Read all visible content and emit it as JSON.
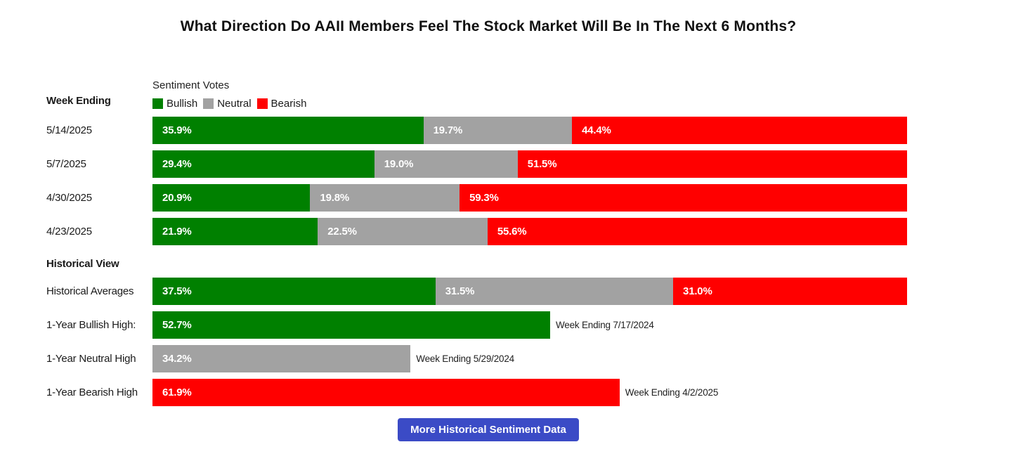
{
  "title": "What Direction Do AAII Members Feel The Stock Market Will Be In The Next 6 Months?",
  "colors": {
    "bullish": "#008000",
    "neutral": "#a2a2a2",
    "bearish": "#ff0000",
    "button_bg": "#3b4bc6",
    "button_text": "#ffffff"
  },
  "left_column": {
    "week_ending_label": "Week Ending",
    "historical_view_label": "Historical View"
  },
  "legend": {
    "title": "Sentiment Votes",
    "items": [
      {
        "label": "Bullish"
      },
      {
        "label": "Neutral"
      },
      {
        "label": "Bearish"
      }
    ]
  },
  "chart_data": {
    "type": "bar",
    "subtype": "horizontal-stacked",
    "unit": "%",
    "series": [
      "Bullish",
      "Neutral",
      "Bearish"
    ],
    "xlim": [
      0,
      100
    ],
    "weekly": [
      {
        "week_ending": "5/14/2025",
        "values": {
          "bullish": 35.9,
          "neutral": 19.7,
          "bearish": 44.4
        },
        "labels": {
          "bullish": "35.9%",
          "neutral": "19.7%",
          "bearish": "44.4%"
        }
      },
      {
        "week_ending": "5/7/2025",
        "values": {
          "bullish": 29.4,
          "neutral": 19.0,
          "bearish": 51.5
        },
        "labels": {
          "bullish": "29.4%",
          "neutral": "19.0%",
          "bearish": "51.5%"
        }
      },
      {
        "week_ending": "4/30/2025",
        "values": {
          "bullish": 20.9,
          "neutral": 19.8,
          "bearish": 59.3
        },
        "labels": {
          "bullish": "20.9%",
          "neutral": "19.8%",
          "bearish": "59.3%"
        }
      },
      {
        "week_ending": "4/23/2025",
        "values": {
          "bullish": 21.9,
          "neutral": 22.5,
          "bearish": 55.6
        },
        "labels": {
          "bullish": "21.9%",
          "neutral": "22.5%",
          "bearish": "55.6%"
        }
      }
    ],
    "historical_averages": {
      "label": "Historical Averages",
      "values": {
        "bullish": 37.5,
        "neutral": 31.5,
        "bearish": 31.0
      },
      "labels": {
        "bullish": "37.5%",
        "neutral": "31.5%",
        "bearish": "31.0%"
      }
    },
    "one_year_highs": [
      {
        "label": "1-Year Bullish High:",
        "series": "Bullish",
        "value": 52.7,
        "display": "52.7%",
        "annotation": "Week Ending 7/17/2024"
      },
      {
        "label": "1-Year Neutral High",
        "series": "Neutral",
        "value": 34.2,
        "display": "34.2%",
        "annotation": "Week Ending 5/29/2024"
      },
      {
        "label": "1-Year Bearish High",
        "series": "Bearish",
        "value": 61.9,
        "display": "61.9%",
        "annotation": "Week Ending 4/2/2025"
      }
    ]
  },
  "button": {
    "label": "More Historical Sentiment Data"
  }
}
